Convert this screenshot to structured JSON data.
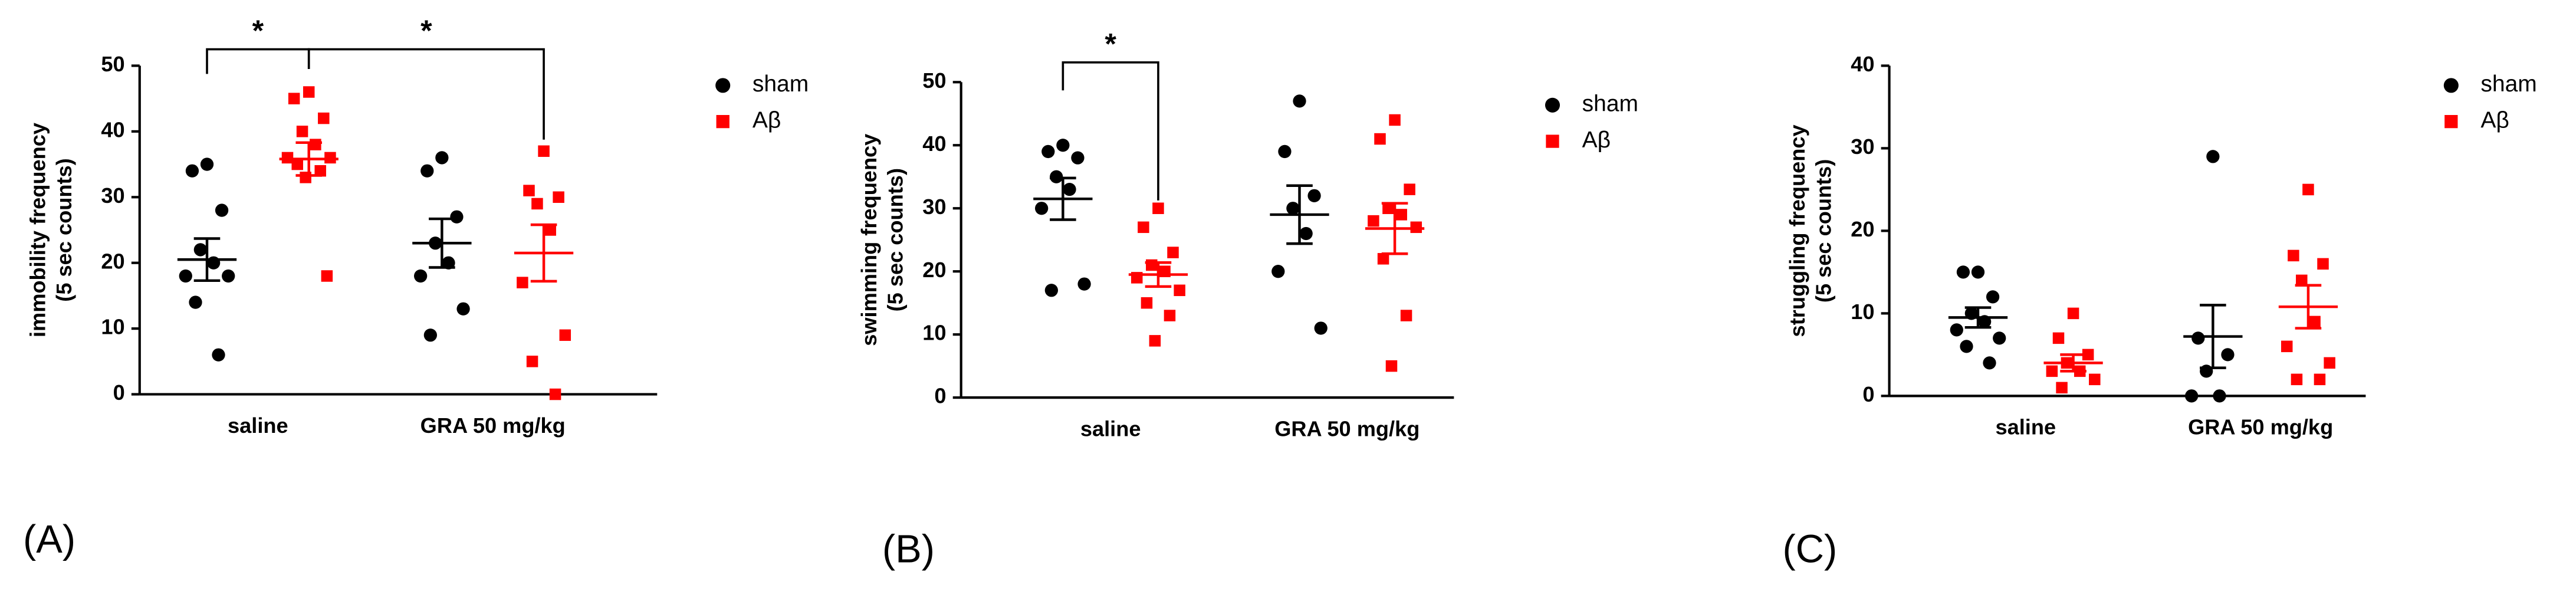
{
  "chart_data": [
    {
      "type": "scatter",
      "panel_label": "(A)",
      "y_label": [
        "immobility frequency",
        "(5 sec counts)"
      ],
      "categories": [
        "saline",
        "GRA 50 mg/kg"
      ],
      "ylim": [
        0,
        50
      ],
      "yticks": [
        0,
        10,
        20,
        30,
        40,
        50
      ],
      "significance": [
        "*",
        "*"
      ],
      "series": [
        {
          "name": "sham",
          "color": "#000000",
          "marker": "circle",
          "values": [
            [
              35,
              34,
              28,
              22,
              20,
              18,
              18,
              14,
              6
            ],
            [
              36,
              34,
              27,
              23,
              20,
              18,
              13,
              9
            ]
          ],
          "mean": [
            20.5,
            23
          ],
          "sem": [
            3.2,
            3.7
          ]
        },
        {
          "name": "Aβ",
          "color": "#ff0000",
          "marker": "square",
          "values": [
            [
              46,
              45,
              42,
              40,
              38,
              36,
              36,
              35,
              34,
              33,
              18
            ],
            [
              37,
              31,
              30,
              29,
              25,
              17,
              9,
              5,
              0
            ]
          ],
          "mean": [
            35.8,
            21.5
          ],
          "sem": [
            2.5,
            4.3
          ]
        }
      ]
    },
    {
      "type": "scatter",
      "panel_label": "(B)",
      "y_label": [
        "swimming frequency",
        "(5 sec counts)"
      ],
      "categories": [
        "saline",
        "GRA 50 mg/kg"
      ],
      "ylim": [
        0,
        50
      ],
      "yticks": [
        0,
        10,
        20,
        30,
        40,
        50
      ],
      "significance": [
        "*"
      ],
      "series": [
        {
          "name": "sham",
          "color": "#000000",
          "marker": "circle",
          "values": [
            [
              40,
              39,
              38,
              35,
              33,
              30,
              18,
              17
            ],
            [
              47,
              39,
              32,
              30,
              26,
              20,
              11
            ]
          ],
          "mean": [
            31.5,
            29
          ],
          "sem": [
            3.3,
            4.6
          ]
        },
        {
          "name": "Aβ",
          "color": "#ff0000",
          "marker": "square",
          "values": [
            [
              30,
              27,
              23,
              21,
              20,
              19,
              17,
              15,
              13,
              9
            ],
            [
              44,
              41,
              33,
              30,
              29,
              28,
              27,
              22,
              13,
              5
            ]
          ],
          "mean": [
            19.5,
            26.8
          ],
          "sem": [
            1.9,
            4
          ]
        }
      ]
    },
    {
      "type": "scatter",
      "panel_label": "(C)",
      "y_label": [
        "struggling frequency",
        "(5 sec counts)"
      ],
      "categories": [
        "saline",
        "GRA 50 mg/kg"
      ],
      "ylim": [
        0,
        40
      ],
      "yticks": [
        0,
        10,
        20,
        30,
        40
      ],
      "significance": [],
      "series": [
        {
          "name": "sham",
          "color": "#000000",
          "marker": "circle",
          "values": [
            [
              15,
              15,
              12,
              10,
              9,
              8,
              7,
              6,
              4
            ],
            [
              29,
              7,
              5,
              3,
              0,
              0
            ]
          ],
          "mean": [
            9.5,
            7.2
          ],
          "sem": [
            1.2,
            3.8
          ]
        },
        {
          "name": "Aβ",
          "color": "#ff0000",
          "marker": "square",
          "values": [
            [
              10,
              7,
              5,
              4,
              3,
              3,
              2,
              1
            ],
            [
              25,
              17,
              16,
              14,
              9,
              6,
              4,
              2,
              2
            ]
          ],
          "mean": [
            4,
            10.8
          ],
          "sem": [
            1,
            2.6
          ]
        }
      ]
    }
  ]
}
